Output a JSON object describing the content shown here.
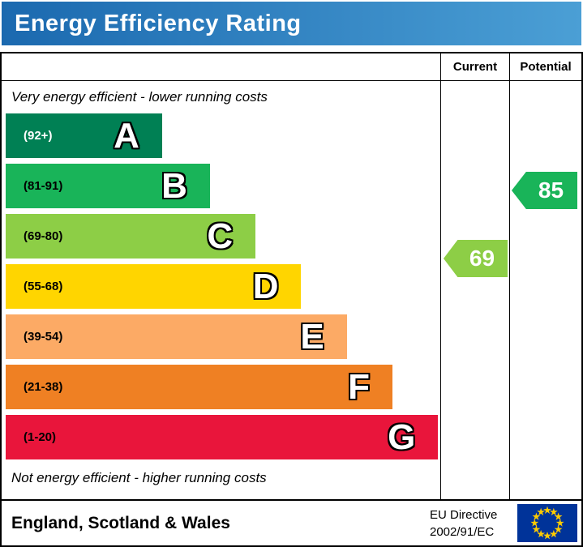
{
  "title": "Energy Efficiency Rating",
  "columns": {
    "current": "Current",
    "potential": "Potential"
  },
  "top_note": "Very energy efficient - lower running costs",
  "bottom_note": "Not energy efficient - higher running costs",
  "footer": {
    "region": "England, Scotland & Wales",
    "directive_line1": "EU Directive",
    "directive_line2": "2002/91/EC"
  },
  "colors": {
    "banner_left": "#1b69af",
    "banner_right": "#4b9fd5",
    "eu_flag_blue": "#003399",
    "eu_star_yellow": "#ffcc00"
  },
  "chart_data": {
    "type": "bar",
    "title": "Energy Efficiency Rating",
    "bands": [
      {
        "letter": "A",
        "range": "(92+)",
        "min": 92,
        "max": 100,
        "color": "#008054",
        "range_color": "#ffffff",
        "width_pct": 36
      },
      {
        "letter": "B",
        "range": "(81-91)",
        "min": 81,
        "max": 91,
        "color": "#19b459",
        "range_color": "#000000",
        "width_pct": 47
      },
      {
        "letter": "C",
        "range": "(69-80)",
        "min": 69,
        "max": 80,
        "color": "#8dce46",
        "range_color": "#000000",
        "width_pct": 57.5
      },
      {
        "letter": "D",
        "range": "(55-68)",
        "min": 55,
        "max": 68,
        "color": "#ffd500",
        "range_color": "#000000",
        "width_pct": 68
      },
      {
        "letter": "E",
        "range": "(39-54)",
        "min": 39,
        "max": 54,
        "color": "#fcaa65",
        "range_color": "#000000",
        "width_pct": 78.5
      },
      {
        "letter": "F",
        "range": "(21-38)",
        "min": 21,
        "max": 38,
        "color": "#ef8023",
        "range_color": "#000000",
        "width_pct": 89
      },
      {
        "letter": "G",
        "range": "(1-20)",
        "min": 1,
        "max": 20,
        "color": "#e9153b",
        "range_color": "#000000",
        "width_pct": 99.5
      }
    ],
    "current": {
      "label": "Current",
      "value": 69,
      "band": "C",
      "color": "#8dce46"
    },
    "potential": {
      "label": "Potential",
      "value": 85,
      "band": "B",
      "color": "#19b459"
    }
  }
}
